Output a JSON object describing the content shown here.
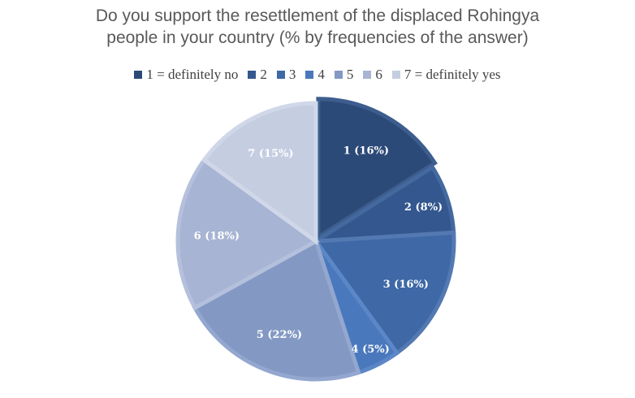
{
  "chart_data": {
    "type": "pie",
    "title_lines": [
      "Do you support the resettlement of the displaced Rohingya",
      "people in your country (% by frequencies of the answer)"
    ],
    "legend_position": "top",
    "categories": [
      "1 = definitely no",
      "2",
      "3",
      "4",
      "5",
      "6",
      "7 = definitely yes"
    ],
    "values": [
      16,
      8,
      16,
      5,
      22,
      18,
      15
    ],
    "slice_labels": [
      "1 (16%)",
      "2 (8%)",
      "3 (16%)",
      "4 (5%)",
      "5 (22%)",
      "6 (18%)",
      "7 (15%)"
    ],
    "colors": [
      "#2c4a78",
      "#33578e",
      "#3e68a6",
      "#4a78bd",
      "#8399c4",
      "#a7b4d3",
      "#c5cde1"
    ],
    "border_colors": [
      "#3d5d8e",
      "#44699f",
      "#5479b2",
      "#5c87c7",
      "#93a7cf",
      "#b4c0dc",
      "#d0d7e8"
    ]
  }
}
